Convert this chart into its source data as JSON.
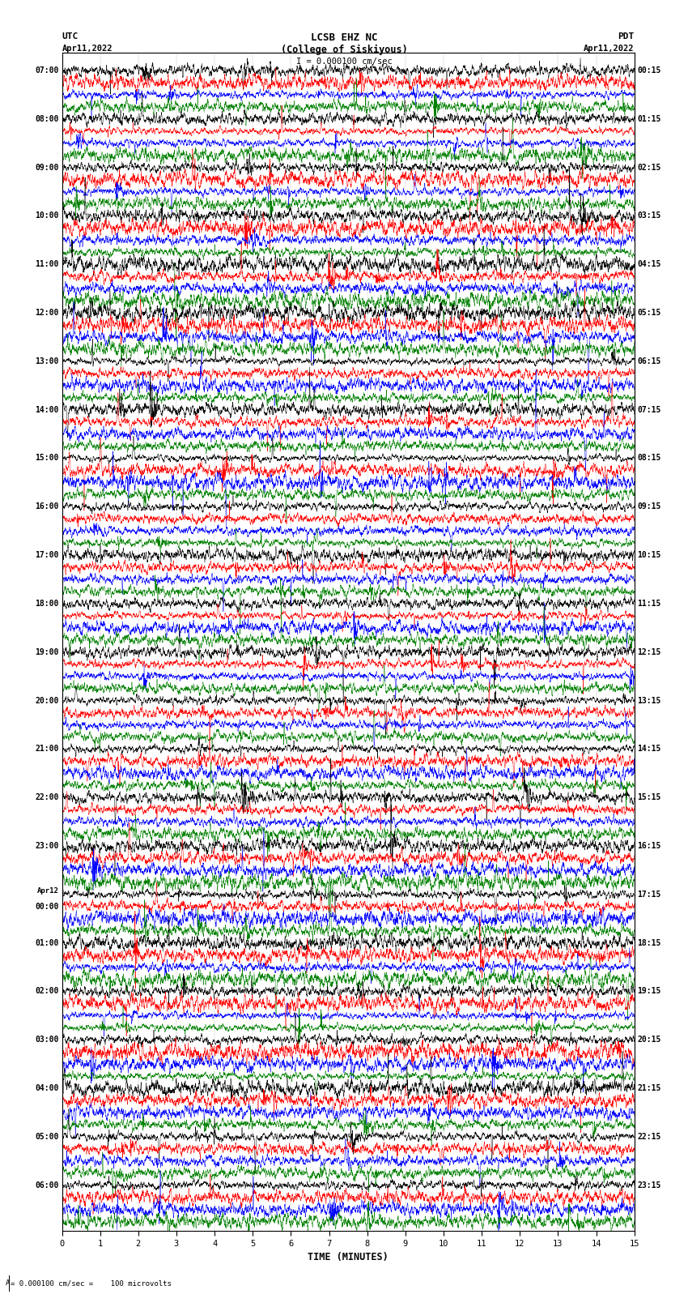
{
  "title_line1": "LCSB EHZ NC",
  "title_line2": "(College of Siskiyous)",
  "scale_text": "I = 0.000100 cm/sec",
  "bottom_scale_text": "= 0.000100 cm/sec =    100 microvolts",
  "left_label": "UTC",
  "right_label": "PDT",
  "left_date": "Apr11,2022",
  "right_date": "Apr11,2022",
  "xlabel": "TIME (MINUTES)",
  "xlim": [
    0,
    15
  ],
  "xticks": [
    0,
    1,
    2,
    3,
    4,
    5,
    6,
    7,
    8,
    9,
    10,
    11,
    12,
    13,
    14,
    15
  ],
  "colors": [
    "black",
    "red",
    "blue",
    "green"
  ],
  "fig_width": 8.5,
  "fig_height": 16.13,
  "n_rows": 96,
  "background_color": "white",
  "utc_times": [
    "07:00",
    "",
    "",
    "",
    "08:00",
    "",
    "",
    "",
    "09:00",
    "",
    "",
    "",
    "10:00",
    "",
    "",
    "",
    "11:00",
    "",
    "",
    "",
    "12:00",
    "",
    "",
    "",
    "13:00",
    "",
    "",
    "",
    "14:00",
    "",
    "",
    "",
    "15:00",
    "",
    "",
    "",
    "16:00",
    "",
    "",
    "",
    "17:00",
    "",
    "",
    "",
    "18:00",
    "",
    "",
    "",
    "19:00",
    "",
    "",
    "",
    "20:00",
    "",
    "",
    "",
    "21:00",
    "",
    "",
    "",
    "22:00",
    "",
    "",
    "",
    "23:00",
    "",
    "",
    "",
    "Apr12",
    "00:00",
    "",
    "",
    "01:00",
    "",
    "",
    "",
    "02:00",
    "",
    "",
    "",
    "03:00",
    "",
    "",
    "",
    "04:00",
    "",
    "",
    "",
    "05:00",
    "",
    "",
    "",
    "06:00",
    "",
    "",
    ""
  ],
  "pdt_times": [
    "00:15",
    "",
    "",
    "",
    "01:15",
    "",
    "",
    "",
    "02:15",
    "",
    "",
    "",
    "03:15",
    "",
    "",
    "",
    "04:15",
    "",
    "",
    "",
    "05:15",
    "",
    "",
    "",
    "06:15",
    "",
    "",
    "",
    "07:15",
    "",
    "",
    "",
    "08:15",
    "",
    "",
    "",
    "09:15",
    "",
    "",
    "",
    "10:15",
    "",
    "",
    "",
    "11:15",
    "",
    "",
    "",
    "12:15",
    "",
    "",
    "",
    "13:15",
    "",
    "",
    "",
    "14:15",
    "",
    "",
    "",
    "15:15",
    "",
    "",
    "",
    "16:15",
    "",
    "",
    "",
    "17:15",
    "",
    "",
    "",
    "18:15",
    "",
    "",
    "",
    "19:15",
    "",
    "",
    "",
    "20:15",
    "",
    "",
    "",
    "21:15",
    "",
    "",
    "",
    "22:15",
    "",
    "",
    "",
    "23:15",
    "",
    "",
    ""
  ]
}
